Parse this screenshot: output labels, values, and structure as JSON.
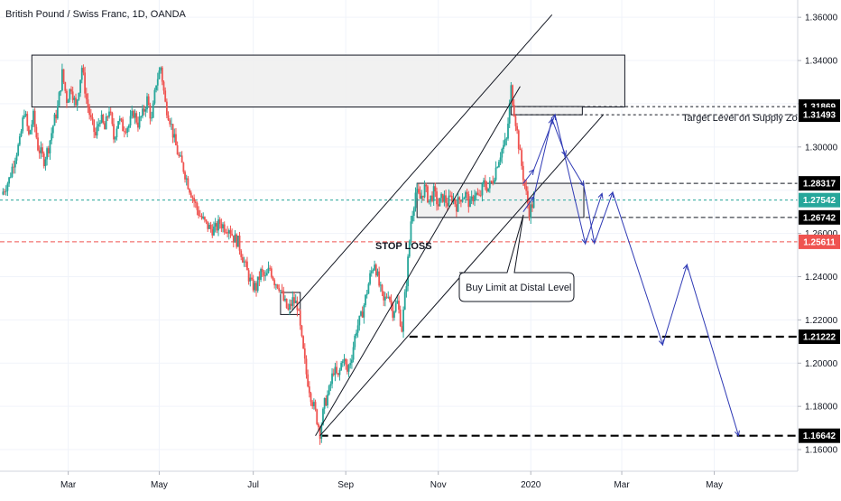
{
  "chart_data": {
    "type": "candlestick",
    "title": "British Pound / Swiss Franc, 1D, OANDA",
    "ylim": [
      1.15,
      1.368
    ],
    "y_ticks": [
      {
        "value": 1.36,
        "label": "1.36000"
      },
      {
        "value": 1.34,
        "label": "1.34000"
      },
      {
        "value": 1.32,
        "label": ""
      },
      {
        "value": 1.3,
        "label": "1.30000"
      },
      {
        "value": 1.28,
        "label": ""
      },
      {
        "value": 1.26,
        "label": "1.26000"
      },
      {
        "value": 1.24,
        "label": "1.24000"
      },
      {
        "value": 1.22,
        "label": "1.22000"
      },
      {
        "value": 1.2,
        "label": "1.20000"
      },
      {
        "value": 1.18,
        "label": "1.18000"
      },
      {
        "value": 1.16,
        "label": "1.16000"
      }
    ],
    "x_ticks": [
      {
        "t": 40,
        "label": "Mar"
      },
      {
        "t": 100,
        "label": "May"
      },
      {
        "t": 162,
        "label": "Jul"
      },
      {
        "t": 223,
        "label": "Sep"
      },
      {
        "t": 284,
        "label": "Nov"
      },
      {
        "t": 345,
        "label": "2020"
      },
      {
        "t": 405,
        "label": "Mar"
      },
      {
        "t": 466,
        "label": "May"
      }
    ],
    "x_domain": [
      -5,
      521
    ],
    "price_path": [
      [
        -4,
        1.278
      ],
      [
        1,
        1.285
      ],
      [
        5,
        1.296
      ],
      [
        8,
        1.302
      ],
      [
        11,
        1.317
      ],
      [
        14,
        1.305
      ],
      [
        17,
        1.314
      ],
      [
        20,
        1.3
      ],
      [
        24,
        1.294
      ],
      [
        27,
        1.3
      ],
      [
        30,
        1.31
      ],
      [
        33,
        1.318
      ],
      [
        36,
        1.334
      ],
      [
        39,
        1.322
      ],
      [
        42,
        1.328
      ],
      [
        45,
        1.318
      ],
      [
        49,
        1.337
      ],
      [
        52,
        1.322
      ],
      [
        55,
        1.312
      ],
      [
        58,
        1.305
      ],
      [
        61,
        1.314
      ],
      [
        64,
        1.308
      ],
      [
        67,
        1.318
      ],
      [
        70,
        1.304
      ],
      [
        73,
        1.313
      ],
      [
        76,
        1.309
      ],
      [
        80,
        1.31
      ],
      [
        83,
        1.316
      ],
      [
        86,
        1.311
      ],
      [
        89,
        1.315
      ],
      [
        92,
        1.322
      ],
      [
        95,
        1.312
      ],
      [
        98,
        1.33
      ],
      [
        101,
        1.337
      ],
      [
        104,
        1.32
      ],
      [
        107,
        1.313
      ],
      [
        110,
        1.303
      ],
      [
        113,
        1.295
      ],
      [
        116,
        1.29
      ],
      [
        119,
        1.283
      ],
      [
        122,
        1.277
      ],
      [
        125,
        1.271
      ],
      [
        128,
        1.267
      ],
      [
        131,
        1.264
      ],
      [
        134,
        1.262
      ],
      [
        137,
        1.262
      ],
      [
        140,
        1.265
      ],
      [
        143,
        1.263
      ],
      [
        146,
        1.263
      ],
      [
        149,
        1.258
      ],
      [
        152,
        1.256
      ],
      [
        155,
        1.249
      ],
      [
        158,
        1.242
      ],
      [
        161,
        1.236
      ],
      [
        164,
        1.235
      ],
      [
        167,
        1.242
      ],
      [
        170,
        1.239
      ],
      [
        173,
        1.244
      ],
      [
        176,
        1.238
      ],
      [
        179,
        1.236
      ],
      [
        182,
        1.229
      ],
      [
        185,
        1.224
      ],
      [
        188,
        1.229
      ],
      [
        191,
        1.227
      ],
      [
        194,
        1.21
      ],
      [
        197,
        1.195
      ],
      [
        200,
        1.185
      ],
      [
        203,
        1.177
      ],
      [
        206,
        1.168
      ],
      [
        209,
        1.181
      ],
      [
        212,
        1.187
      ],
      [
        215,
        1.197
      ],
      [
        218,
        1.193
      ],
      [
        221,
        1.203
      ],
      [
        224,
        1.196
      ],
      [
        227,
        1.204
      ],
      [
        230,
        1.216
      ],
      [
        233,
        1.221
      ],
      [
        236,
        1.23
      ],
      [
        239,
        1.24
      ],
      [
        242,
        1.247
      ],
      [
        245,
        1.236
      ],
      [
        248,
        1.228
      ],
      [
        251,
        1.233
      ],
      [
        254,
        1.224
      ],
      [
        257,
        1.228
      ],
      [
        260,
        1.216
      ],
      [
        263,
        1.238
      ],
      [
        266,
        1.266
      ],
      [
        269,
        1.279
      ],
      [
        272,
        1.276
      ],
      [
        275,
        1.281
      ],
      [
        278,
        1.275
      ],
      [
        281,
        1.279
      ],
      [
        284,
        1.273
      ],
      [
        287,
        1.277
      ],
      [
        290,
        1.274
      ],
      [
        293,
        1.277
      ],
      [
        296,
        1.273
      ],
      [
        299,
        1.277
      ],
      [
        302,
        1.278
      ],
      [
        305,
        1.273
      ],
      [
        308,
        1.279
      ],
      [
        311,
        1.276
      ],
      [
        314,
        1.283
      ],
      [
        317,
        1.281
      ],
      [
        320,
        1.285
      ],
      [
        323,
        1.293
      ],
      [
        326,
        1.299
      ],
      [
        329,
        1.303
      ],
      [
        332,
        1.327
      ],
      [
        335,
        1.312
      ],
      [
        338,
        1.296
      ],
      [
        341,
        1.282
      ],
      [
        344,
        1.27
      ],
      [
        347,
        1.275
      ]
    ],
    "zones": [
      {
        "name": "upper-supply-zone",
        "t1": 16,
        "t2": 407,
        "y1": 1.3425,
        "y2": 1.3185
      },
      {
        "name": "target-supply-zone",
        "t1": 332,
        "t2": 379,
        "y1": 1.3187,
        "y2": 1.3149
      },
      {
        "name": "demand-zone",
        "t1": 270,
        "t2": 380,
        "y1": 1.2832,
        "y2": 1.2674
      },
      {
        "name": "july-consolidation-box",
        "t1": 180,
        "t2": 193,
        "y1": 1.2327,
        "y2": 1.2225
      }
    ],
    "trend_lines": [
      {
        "name": "channel-upper-line",
        "t1": 186,
        "y1": 1.223,
        "t2": 359,
        "y2": 1.3612
      },
      {
        "name": "channel-lower-line",
        "t1": 206,
        "y1": 1.1664,
        "t2": 393,
        "y2": 1.3151
      },
      {
        "name": "channel-mid-line",
        "t1": 203,
        "y1": 1.1664,
        "t2": 338,
        "y2": 1.328
      }
    ],
    "horizontal_levels": [
      {
        "name": "level-131869",
        "value": 1.31869,
        "t1": 336,
        "style": "dotted",
        "color": "#131722",
        "label": "1.31869"
      },
      {
        "name": "level-131493",
        "value": 1.31493,
        "t1": 334,
        "style": "dotted",
        "color": "#131722",
        "label": "1.31493"
      },
      {
        "name": "level-128317",
        "value": 1.28317,
        "t1": 381,
        "style": "dashed",
        "color": "#131722",
        "label": "1.28317"
      },
      {
        "name": "level-127542",
        "value": 1.27542,
        "t1": -5,
        "style": "dotted",
        "color": "#26a69a",
        "label": "1.27542"
      },
      {
        "name": "level-126742",
        "value": 1.26742,
        "t1": 381,
        "style": "dashed",
        "color": "#131722",
        "label": "1.26742"
      },
      {
        "name": "level-125611",
        "value": 1.25611,
        "t1": -5,
        "style": "dashed",
        "color": "#ef5350",
        "label": "1.25611"
      },
      {
        "name": "level-121222",
        "value": 1.21222,
        "t1": 265,
        "style": "bold-dashed",
        "color": "#000000",
        "label": "1.21222"
      },
      {
        "name": "level-116642",
        "value": 1.16642,
        "t1": 206,
        "style": "bold-dashed",
        "color": "#000000",
        "label": "1.16642"
      }
    ],
    "projection_paths": [
      {
        "name": "projection-short-path",
        "points": [
          [
            340,
            1.2831
          ],
          [
            347,
            1.2895
          ],
          [
            361,
            1.3149
          ],
          [
            381,
            1.2553
          ],
          [
            392,
            1.2785
          ]
        ]
      },
      {
        "name": "projection-long-path",
        "points": [
          [
            340,
            1.27
          ],
          [
            347,
            1.277
          ],
          [
            359,
            1.313
          ],
          [
            368,
            1.296
          ],
          [
            380,
            1.282
          ],
          [
            387,
            1.2555
          ],
          [
            399,
            1.279
          ],
          [
            432,
            1.2085
          ],
          [
            448,
            1.2455
          ],
          [
            482,
            1.1664
          ]
        ]
      }
    ],
    "annotations": [
      {
        "name": "target-label",
        "text": "Target Level on Supply Zone"
      },
      {
        "name": "stop-loss-label",
        "text": "STOP LOSS"
      },
      {
        "name": "buy-limit-callout",
        "text": "Buy Limit at Distal Level"
      }
    ],
    "colors": {
      "up": "#26a69a",
      "down": "#ef5350",
      "projection": "#2f3ab5",
      "zone_fill": "#efefef"
    }
  }
}
